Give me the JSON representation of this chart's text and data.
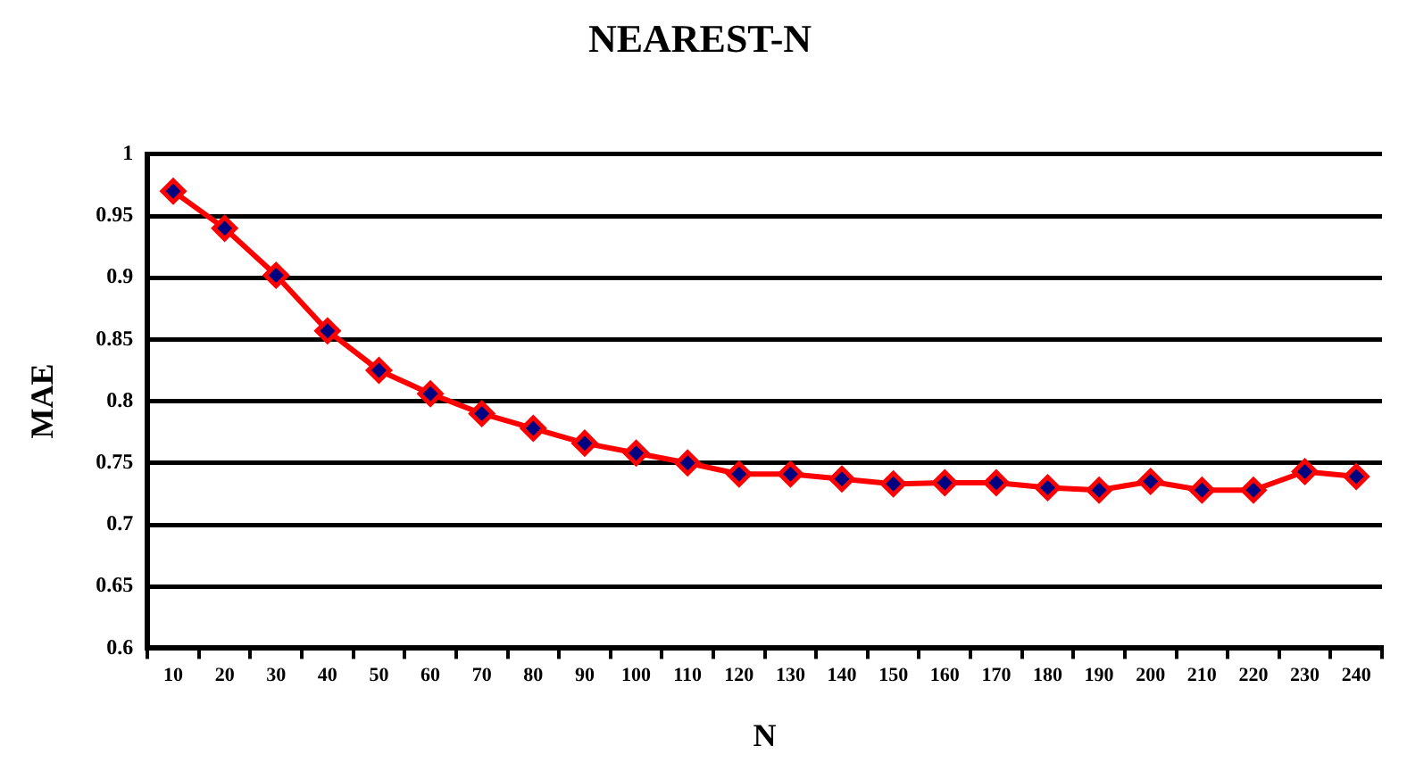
{
  "chart_data": {
    "type": "line",
    "title": "NEAREST-N",
    "xlabel": "N",
    "ylabel": "MAE",
    "categories": [
      "10",
      "20",
      "30",
      "40",
      "50",
      "60",
      "70",
      "80",
      "90",
      "100",
      "110",
      "120",
      "130",
      "140",
      "150",
      "160",
      "170",
      "180",
      "190",
      "200",
      "210",
      "220",
      "230",
      "240"
    ],
    "series": [
      {
        "color": "#ff0000",
        "values": [
          0.97,
          0.94,
          0.902,
          0.857,
          0.825,
          0.806,
          0.79,
          0.778,
          0.766,
          0.758,
          0.75,
          0.741,
          0.741,
          0.737,
          0.733,
          0.734,
          0.734,
          0.73,
          0.728,
          0.735,
          0.728,
          0.728,
          0.743,
          0.739
        ]
      }
    ],
    "ylim": [
      0.6,
      1
    ],
    "yticks": [
      0.6,
      0.65,
      0.7,
      0.75,
      0.8,
      0.85,
      0.9,
      0.95,
      1
    ],
    "grid": "y",
    "marker": "diamond",
    "line_style": "solid"
  }
}
